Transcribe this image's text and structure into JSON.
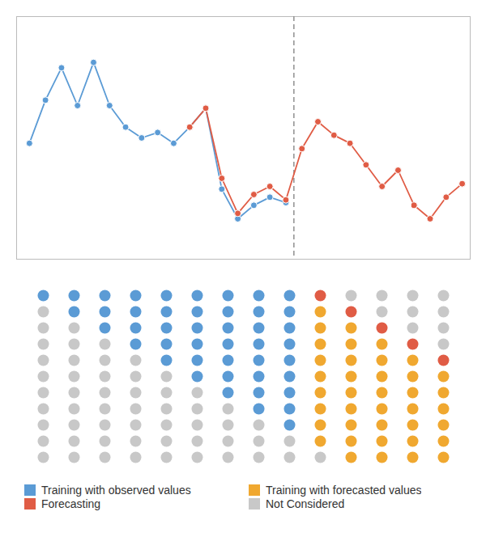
{
  "chart_data": [
    {
      "type": "line",
      "x": [
        0,
        1,
        2,
        3,
        4,
        5,
        6,
        7,
        8,
        9,
        10,
        11,
        12,
        13,
        14,
        15,
        16,
        17,
        18,
        19,
        20,
        21,
        22,
        23,
        24,
        25,
        26,
        27
      ],
      "series": [
        {
          "color": "#5B9BD5",
          "marker": "circle",
          "values": [
            5.8,
            7.4,
            8.6,
            7.2,
            8.8,
            7.2,
            6.4,
            6.0,
            6.2,
            5.8,
            6.4,
            7.1,
            4.1,
            3.0,
            3.5,
            3.8,
            3.6,
            null,
            null,
            null,
            null,
            null,
            null,
            null,
            null,
            null,
            null,
            null
          ]
        },
        {
          "color": "#E05C45",
          "marker": "circle",
          "values": [
            null,
            null,
            null,
            null,
            null,
            null,
            null,
            null,
            null,
            null,
            6.4,
            7.1,
            4.5,
            3.2,
            3.9,
            4.2,
            3.7,
            5.6,
            6.6,
            6.1,
            5.8,
            5.0,
            4.2,
            4.8,
            3.5,
            3.0,
            3.8,
            4.3
          ]
        }
      ],
      "reference_lines": [
        {
          "x": 16.5,
          "color": "#909090",
          "line_style": "dashed"
        }
      ],
      "xlim": [
        -0.8,
        27.5
      ],
      "ylim": [
        1.5,
        10.5
      ],
      "tick_labels": false,
      "grid": false
    },
    {
      "type": "dot_grid",
      "categories": [
        "Training with observed values",
        "Forecasting",
        "Training with forecasted values",
        "Not Considered"
      ],
      "colors": [
        "#5B9BD5",
        "#E05C45",
        "#F0A830",
        "#C8C8C8"
      ],
      "cells": [
        [
          0,
          0,
          0,
          0,
          0,
          0,
          0,
          0,
          0,
          1,
          3,
          3,
          3,
          3
        ],
        [
          3,
          0,
          0,
          0,
          0,
          0,
          0,
          0,
          0,
          2,
          1,
          3,
          3,
          3
        ],
        [
          3,
          3,
          0,
          0,
          0,
          0,
          0,
          0,
          0,
          2,
          2,
          1,
          3,
          3
        ],
        [
          3,
          3,
          3,
          0,
          0,
          0,
          0,
          0,
          0,
          2,
          2,
          2,
          1,
          3
        ],
        [
          3,
          3,
          3,
          3,
          0,
          0,
          0,
          0,
          0,
          2,
          2,
          2,
          2,
          1
        ],
        [
          3,
          3,
          3,
          3,
          3,
          0,
          0,
          0,
          0,
          2,
          2,
          2,
          2,
          2
        ],
        [
          3,
          3,
          3,
          3,
          3,
          3,
          0,
          0,
          0,
          2,
          2,
          2,
          2,
          2
        ],
        [
          3,
          3,
          3,
          3,
          3,
          3,
          3,
          0,
          0,
          2,
          2,
          2,
          2,
          2
        ],
        [
          3,
          3,
          3,
          3,
          3,
          3,
          3,
          3,
          0,
          2,
          2,
          2,
          2,
          2
        ],
        [
          3,
          3,
          3,
          3,
          3,
          3,
          3,
          3,
          3,
          2,
          2,
          2,
          2,
          2
        ],
        [
          3,
          3,
          3,
          3,
          3,
          3,
          3,
          3,
          3,
          3,
          2,
          2,
          2,
          2
        ]
      ],
      "legend": "bottom",
      "tick_labels": false
    }
  ]
}
